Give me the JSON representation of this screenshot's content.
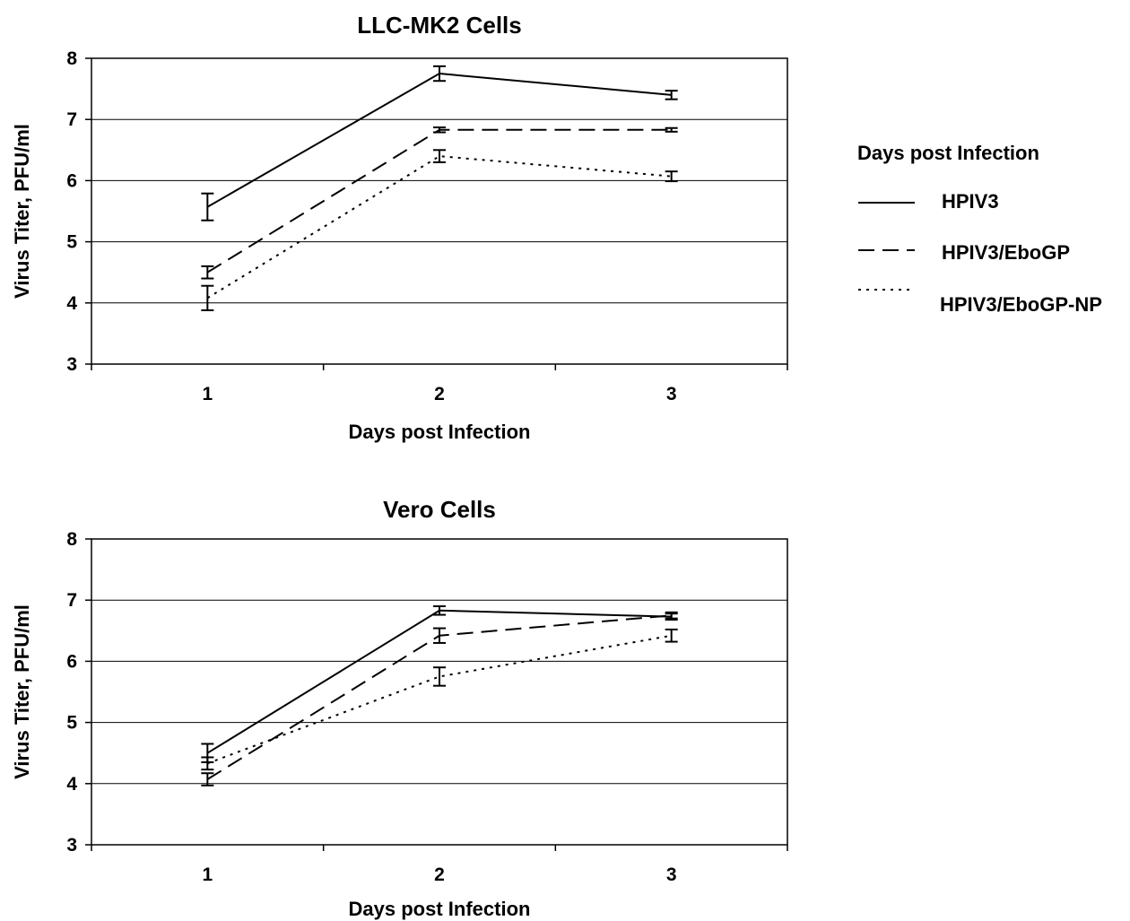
{
  "legend": {
    "title": "Days post Infection",
    "entries": [
      {
        "label": "HPIV3",
        "style": "solid"
      },
      {
        "label": "HPIV3/EboGP",
        "style": "dashed"
      },
      {
        "label": "HPIV3/EboGP-NP",
        "style": "dotted"
      }
    ]
  },
  "chart_data": [
    {
      "type": "line",
      "title": "LLC-MK2 Cells",
      "xlabel": "Days post Infection",
      "ylabel": "Virus Titer, PFU/ml",
      "categories": [
        "1",
        "2",
        "3"
      ],
      "ylim": [
        3,
        8
      ],
      "yticks": [
        3,
        4,
        5,
        6,
        7,
        8
      ],
      "grid": true,
      "series": [
        {
          "name": "HPIV3",
          "style": "solid",
          "values": [
            5.57,
            7.75,
            7.4
          ],
          "errors": [
            0.22,
            0.12,
            0.07
          ]
        },
        {
          "name": "HPIV3/EboGP",
          "style": "dashed",
          "values": [
            4.5,
            6.83,
            6.83
          ],
          "errors": [
            0.1,
            0.04,
            0.03
          ]
        },
        {
          "name": "HPIV3/EboGP-NP",
          "style": "dotted",
          "values": [
            4.08,
            6.4,
            6.07
          ],
          "errors": [
            0.2,
            0.1,
            0.08
          ]
        }
      ]
    },
    {
      "type": "line",
      "title": "Vero Cells",
      "xlabel": "Days post Infection",
      "ylabel": "Virus Titer, PFU/ml",
      "categories": [
        "1",
        "2",
        "3"
      ],
      "ylim": [
        3,
        8
      ],
      "yticks": [
        3,
        4,
        5,
        6,
        7,
        8
      ],
      "grid": true,
      "series": [
        {
          "name": "HPIV3",
          "style": "solid",
          "values": [
            4.5,
            6.83,
            6.73
          ],
          "errors": [
            0.15,
            0.07,
            0.05
          ]
        },
        {
          "name": "HPIV3/EboGP",
          "style": "dashed",
          "values": [
            4.07,
            6.42,
            6.75
          ],
          "errors": [
            0.1,
            0.12,
            0.05
          ]
        },
        {
          "name": "HPIV3/EboGP-NP",
          "style": "dotted",
          "values": [
            4.33,
            5.75,
            6.42
          ],
          "errors": [
            0.1,
            0.15,
            0.1
          ]
        }
      ]
    }
  ]
}
